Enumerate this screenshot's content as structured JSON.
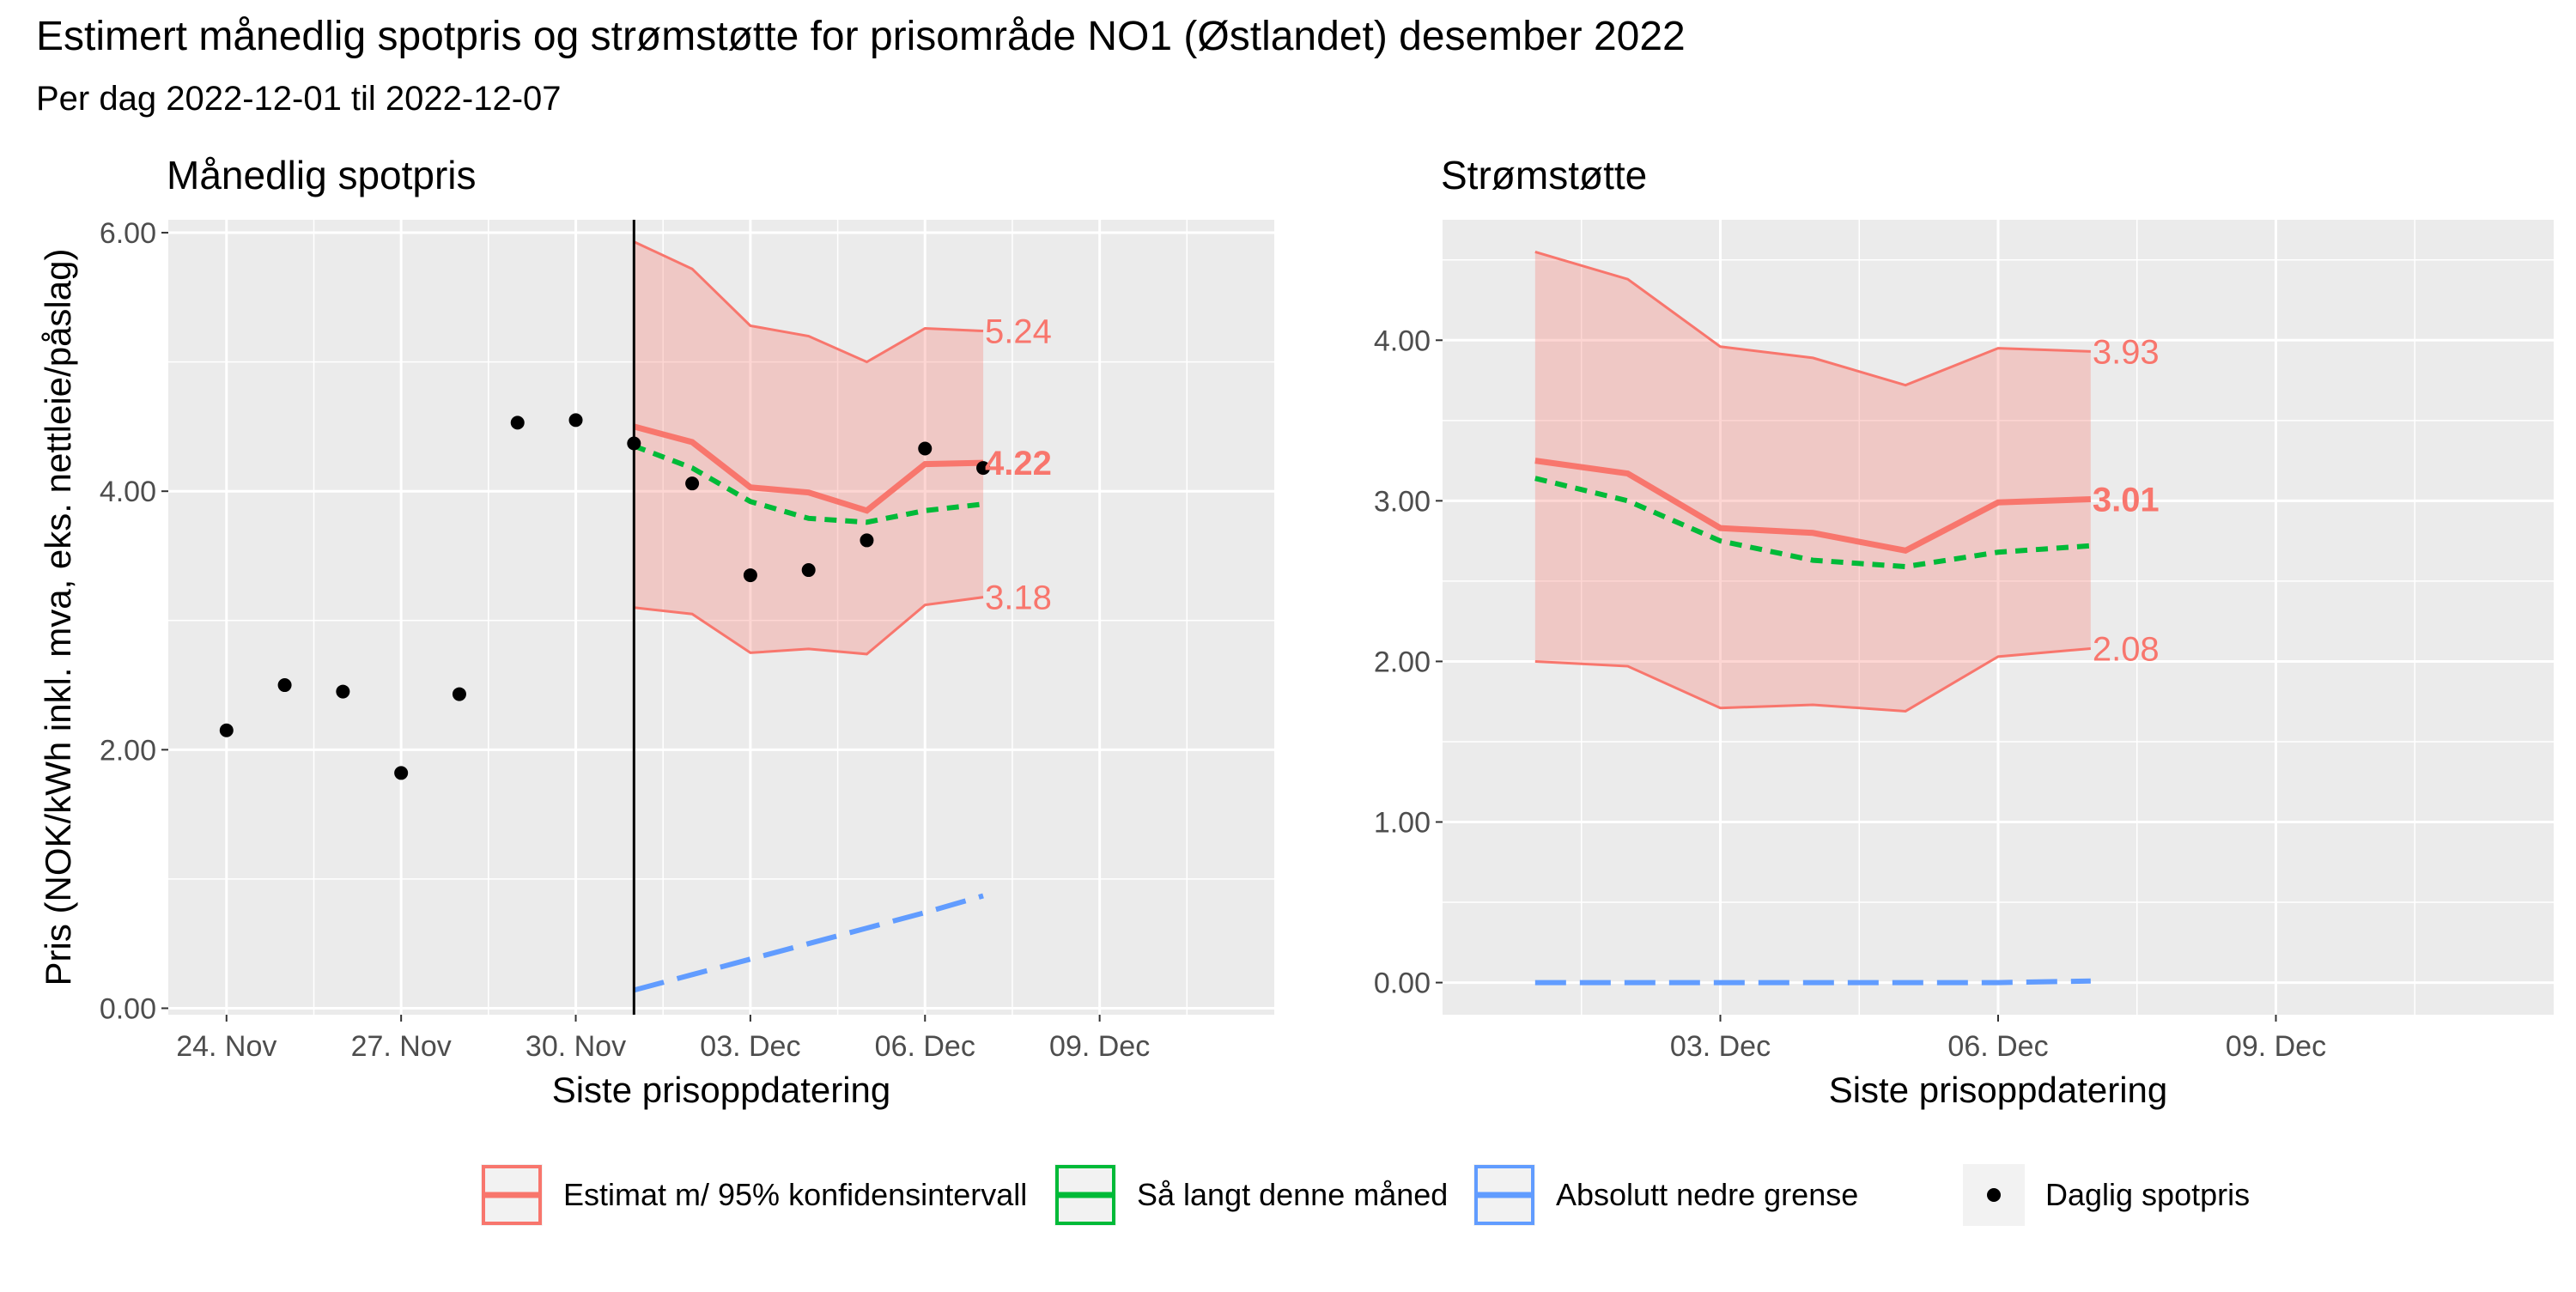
{
  "title": "Estimert månedlig spotpris og strømstøtte for prisområde NO1 (Østlandet)  desember 2022",
  "subtitle": "Per dag 2022-12-01 til 2022-12-07",
  "colors": {
    "estimate": "#F8766D",
    "so_far": "#00BA38",
    "lower_bound": "#619CFF",
    "points": "#000000",
    "panel_bg": "#EBEBEB",
    "grid": "#FFFFFF",
    "band_fill": "#F8766D"
  },
  "legend": {
    "items": [
      {
        "label": "Estimat m/ 95% konfidensintervall",
        "type": "solid",
        "color": "#F8766D"
      },
      {
        "label": "Så langt denne måned",
        "type": "solid",
        "color": "#00BA38"
      },
      {
        "label": "Absolutt nedre grense",
        "type": "solid",
        "color": "#619CFF"
      },
      {
        "label": "Daglig spotpris",
        "type": "point",
        "color": "#000000"
      }
    ]
  },
  "chart_data": [
    {
      "type": "line",
      "title": "Månedlig spotpris",
      "xlabel": "Siste prisoppdatering",
      "ylabel": "Pris (NOK/kWh inkl. mva, eks. nettleie/påslag)",
      "xlim": [
        "2022-11-23",
        "2022-12-12"
      ],
      "ylim": [
        -0.05,
        6.1
      ],
      "x_ticks": [
        "2022-11-24",
        "2022-11-27",
        "2022-11-30",
        "2022-12-03",
        "2022-12-06",
        "2022-12-09"
      ],
      "x_tick_labels": [
        "24. Nov",
        "27. Nov",
        "30. Nov",
        "03. Dec",
        "06. Dec",
        "09. Dec"
      ],
      "y_ticks": [
        0,
        2,
        4,
        6
      ],
      "y_tick_labels": [
        "0.00",
        "2.00",
        "4.00",
        "6.00"
      ],
      "grid": true,
      "vline": "2022-12-01",
      "x": [
        "2022-12-01",
        "2022-12-02",
        "2022-12-03",
        "2022-12-04",
        "2022-12-05",
        "2022-12-06",
        "2022-12-07"
      ],
      "estimate": [
        4.5,
        4.38,
        4.03,
        3.99,
        3.85,
        4.21,
        4.22
      ],
      "upper": [
        5.93,
        5.72,
        5.28,
        5.2,
        5.0,
        5.26,
        5.24
      ],
      "lower": [
        3.1,
        3.05,
        2.75,
        2.78,
        2.74,
        3.12,
        3.18
      ],
      "so_far": [
        4.35,
        4.18,
        3.92,
        3.79,
        3.76,
        3.85,
        3.9
      ],
      "lower_bound": [
        0.14,
        0.26,
        0.38,
        0.5,
        0.62,
        0.74,
        0.87
      ],
      "points": {
        "x": [
          "2022-11-24",
          "2022-11-25",
          "2022-11-26",
          "2022-11-27",
          "2022-11-28",
          "2022-11-29",
          "2022-11-30",
          "2022-12-01",
          "2022-12-02",
          "2022-12-03",
          "2022-12-04",
          "2022-12-05",
          "2022-12-06",
          "2022-12-07"
        ],
        "y": [
          2.15,
          2.5,
          2.45,
          1.82,
          2.43,
          4.53,
          4.55,
          4.37,
          4.06,
          3.35,
          3.39,
          3.62,
          4.33,
          4.18
        ]
      },
      "end_labels": [
        {
          "text": "5.24",
          "value": 5.24,
          "bold": false
        },
        {
          "text": "4.22",
          "value": 4.22,
          "bold": true
        },
        {
          "text": "3.18",
          "value": 3.18,
          "bold": false
        }
      ]
    },
    {
      "type": "line",
      "title": "Strømstøtte",
      "xlabel": "Siste prisoppdatering",
      "ylabel": "",
      "xlim": [
        "2022-11-30",
        "2022-12-12"
      ],
      "ylim": [
        -0.2,
        4.75
      ],
      "x_ticks": [
        "2022-12-03",
        "2022-12-06",
        "2022-12-09"
      ],
      "x_tick_labels": [
        "03. Dec",
        "06. Dec",
        "09. Dec"
      ],
      "y_ticks": [
        0,
        1,
        2,
        3,
        4
      ],
      "y_tick_labels": [
        "0.00",
        "1.00",
        "2.00",
        "3.00",
        "4.00"
      ],
      "grid": true,
      "x": [
        "2022-12-01",
        "2022-12-02",
        "2022-12-03",
        "2022-12-04",
        "2022-12-05",
        "2022-12-06",
        "2022-12-07"
      ],
      "estimate": [
        3.25,
        3.17,
        2.83,
        2.8,
        2.69,
        2.99,
        3.01
      ],
      "upper": [
        4.55,
        4.38,
        3.96,
        3.89,
        3.72,
        3.95,
        3.93
      ],
      "lower": [
        2.0,
        1.97,
        1.71,
        1.73,
        1.69,
        2.03,
        2.08
      ],
      "so_far": [
        3.14,
        3.0,
        2.75,
        2.63,
        2.59,
        2.68,
        2.72
      ],
      "lower_bound": [
        0.0,
        0.0,
        0.0,
        0.0,
        0.0,
        0.0,
        0.01
      ],
      "end_labels": [
        {
          "text": "3.93",
          "value": 3.93,
          "bold": false
        },
        {
          "text": "3.01",
          "value": 3.01,
          "bold": true
        },
        {
          "text": "2.08",
          "value": 2.08,
          "bold": false
        }
      ]
    }
  ]
}
